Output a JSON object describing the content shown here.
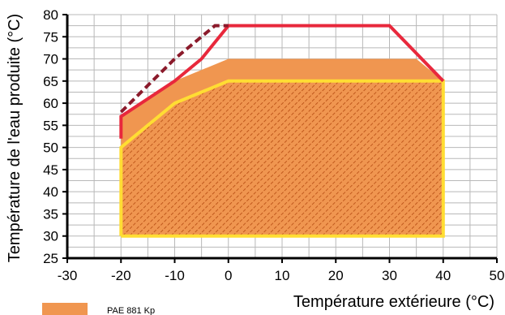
{
  "chart_data": {
    "type": "area",
    "xlabel": "Température extérieure (°C)",
    "ylabel": "Température de l'eau produite (°C)",
    "xlim": [
      -30,
      50
    ],
    "ylim": [
      25,
      80
    ],
    "x_ticks": [
      -30,
      -20,
      -10,
      0,
      10,
      20,
      30,
      40,
      50
    ],
    "y_ticks": [
      25,
      30,
      35,
      40,
      45,
      50,
      55,
      60,
      65,
      70,
      75,
      80
    ],
    "x_tick_labels": [
      "-30",
      "-20",
      "-10",
      "0",
      "10",
      "20",
      "30",
      "40",
      "50"
    ],
    "y_tick_labels": [
      "25",
      "30",
      "35",
      "40",
      "45",
      "50",
      "55",
      "60",
      "65",
      "70",
      "75",
      "80"
    ],
    "grid": true,
    "legend_position": "bottom-left",
    "legend": [
      {
        "label": "PAE 881 Kp",
        "color": "#f09650"
      }
    ],
    "series": [
      {
        "style": "filled-area",
        "color": "#f09650",
        "points": [
          [
            -20,
            30
          ],
          [
            -20,
            57
          ],
          [
            -10,
            65
          ],
          [
            0,
            70
          ],
          [
            35,
            70
          ],
          [
            40,
            65
          ],
          [
            40,
            30
          ]
        ]
      },
      {
        "style": "hatched-area",
        "color": "#c04000",
        "points": [
          [
            -20,
            30
          ],
          [
            -20,
            50
          ],
          [
            -10,
            60
          ],
          [
            0,
            65
          ],
          [
            40,
            65
          ],
          [
            40,
            30
          ]
        ]
      },
      {
        "style": "line",
        "color": "#ffdd33",
        "points": [
          [
            -20,
            30
          ],
          [
            -20,
            50
          ],
          [
            -10,
            60
          ],
          [
            0,
            65
          ],
          [
            40,
            65
          ],
          [
            40,
            30
          ],
          [
            -20,
            30
          ]
        ]
      },
      {
        "style": "line",
        "color": "#e8283c",
        "points": [
          [
            -20,
            52
          ],
          [
            -20,
            57
          ],
          [
            -10,
            65
          ],
          [
            -5,
            70
          ],
          [
            0,
            77.5
          ],
          [
            30,
            77.5
          ],
          [
            40,
            65
          ]
        ]
      },
      {
        "style": "dashed-line",
        "color": "#8b1a2b",
        "points": [
          [
            -20,
            58
          ],
          [
            -10,
            70
          ],
          [
            -2.5,
            77.5
          ],
          [
            0,
            77.5
          ]
        ]
      }
    ]
  }
}
